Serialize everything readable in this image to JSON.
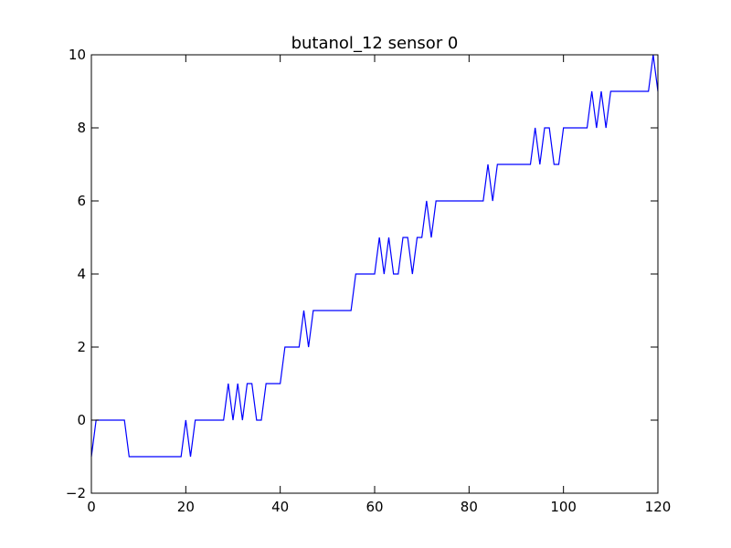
{
  "chart_data": {
    "type": "line",
    "title": "butanol_12 sensor 0",
    "xlabel": "",
    "ylabel": "",
    "xlim": [
      0,
      120
    ],
    "ylim": [
      -2,
      10
    ],
    "x_ticks": [
      0,
      20,
      40,
      60,
      80,
      100,
      120
    ],
    "y_ticks": [
      -2,
      0,
      2,
      4,
      6,
      8,
      10
    ],
    "x_tick_labels": [
      "0",
      "20",
      "40",
      "60",
      "80",
      "100",
      "120"
    ],
    "y_tick_labels": [
      "−2",
      "0",
      "2",
      "4",
      "6",
      "8",
      "10"
    ],
    "grid": false,
    "legend": "none",
    "series": [
      {
        "color": "#0000ff",
        "x": [
          0,
          1,
          2,
          3,
          4,
          5,
          6,
          7,
          8,
          9,
          10,
          11,
          12,
          13,
          14,
          15,
          16,
          17,
          18,
          19,
          20,
          21,
          22,
          23,
          24,
          25,
          26,
          27,
          28,
          29,
          30,
          31,
          32,
          33,
          34,
          35,
          36,
          37,
          38,
          39,
          40,
          41,
          42,
          43,
          44,
          45,
          46,
          47,
          48,
          49,
          50,
          51,
          52,
          53,
          54,
          55,
          56,
          57,
          58,
          59,
          60,
          61,
          62,
          63,
          64,
          65,
          66,
          67,
          68,
          69,
          70,
          71,
          72,
          73,
          74,
          75,
          76,
          77,
          78,
          79,
          80,
          81,
          82,
          83,
          84,
          85,
          86,
          87,
          88,
          89,
          90,
          91,
          92,
          93,
          94,
          95,
          96,
          97,
          98,
          99,
          100,
          101,
          102,
          103,
          104,
          105,
          106,
          107,
          108,
          109,
          110,
          111,
          112,
          113,
          114,
          115,
          116,
          117,
          118,
          119,
          120
        ],
        "y": [
          -1,
          0,
          0,
          0,
          0,
          0,
          0,
          0,
          -1,
          -1,
          -1,
          -1,
          -1,
          -1,
          -1,
          -1,
          -1,
          -1,
          -1,
          -1,
          0,
          -1,
          0,
          0,
          0,
          0,
          0,
          0,
          0,
          1,
          0,
          1,
          0,
          1,
          1,
          0,
          0,
          1,
          1,
          1,
          1,
          2,
          2,
          2,
          2,
          3,
          2,
          3,
          3,
          3,
          3,
          3,
          3,
          3,
          3,
          3,
          4,
          4,
          4,
          4,
          4,
          5,
          4,
          5,
          4,
          4,
          5,
          5,
          4,
          5,
          5,
          6,
          5,
          6,
          6,
          6,
          6,
          6,
          6,
          6,
          6,
          6,
          6,
          6,
          7,
          6,
          7,
          7,
          7,
          7,
          7,
          7,
          7,
          7,
          8,
          7,
          8,
          8,
          7,
          7,
          8,
          8,
          8,
          8,
          8,
          8,
          9,
          8,
          9,
          8,
          9,
          9,
          9,
          9,
          9,
          9,
          9,
          9,
          9,
          10,
          9
        ]
      }
    ]
  }
}
